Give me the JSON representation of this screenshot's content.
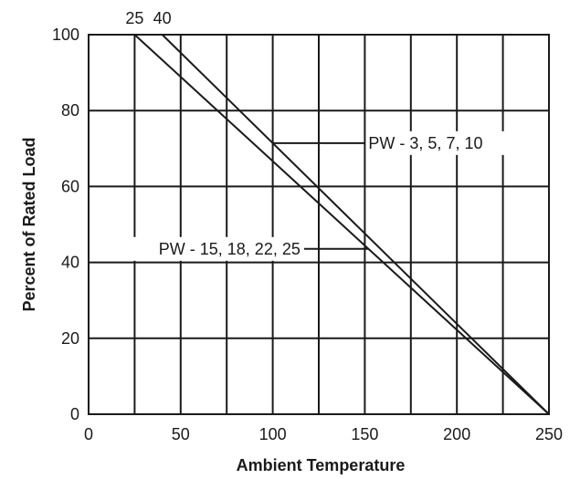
{
  "chart_data": {
    "type": "line",
    "xlabel": "Ambient Temperature",
    "ylabel": "Percent of Rated Load",
    "xlim": [
      0,
      250
    ],
    "ylim": [
      0,
      100
    ],
    "x_ticks": [
      "0",
      "50",
      "100",
      "150",
      "200",
      "250"
    ],
    "y_ticks": [
      "0",
      "20",
      "40",
      "60",
      "80",
      "100"
    ],
    "grid": true,
    "series": [
      {
        "name": "PW - 3, 5, 7, 10",
        "x": [
          40,
          250
        ],
        "y": [
          100,
          0
        ],
        "start_label": "40"
      },
      {
        "name": "PW - 15, 18, 22, 25",
        "x": [
          25,
          250
        ],
        "y": [
          100,
          0
        ],
        "start_label": "25"
      }
    ],
    "annotations": [
      {
        "text": "PW - 3, 5, 7, 10",
        "series": 0,
        "at_x": 100,
        "side": "right",
        "label_x": 152
      },
      {
        "text": "PW - 15, 18, 22, 25",
        "series": 1,
        "at_x": 152,
        "side": "left",
        "label_x": 117
      }
    ]
  }
}
